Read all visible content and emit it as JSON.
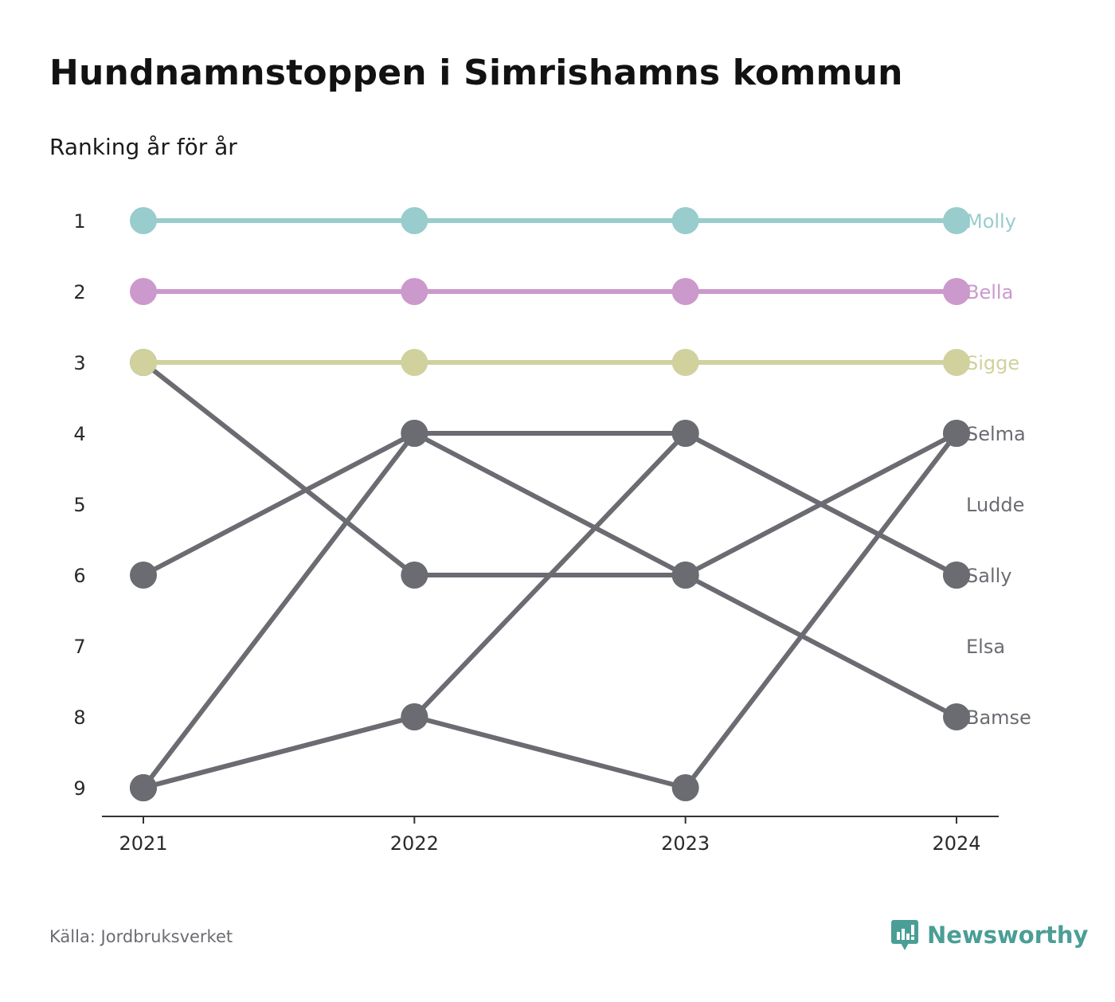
{
  "title": "Hundnamnstoppen i Simrishamns kommun",
  "subtitle": "Ranking år för år",
  "source": "Källa: Jordbruksverket",
  "brand": {
    "name": "Newsworthy",
    "icon": "newsworthy-logo-icon",
    "color": "#4a9e96"
  },
  "chart_data": {
    "type": "line",
    "title": "Hundnamnstoppen i Simrishamns kommun",
    "subtitle": "Ranking år för år",
    "x": [
      "2021",
      "2022",
      "2023",
      "2024"
    ],
    "y_ticks": [
      "1",
      "2",
      "3",
      "4",
      "5",
      "6",
      "7",
      "8",
      "9"
    ],
    "ylim": [
      1,
      9
    ],
    "y_inverted": true,
    "grid": false,
    "legend": "direct labels at right end",
    "series": [
      {
        "name": "Ludde",
        "values": [
          6,
          4,
          6,
          4
        ],
        "color": "#6b6b72"
      },
      {
        "name": "Elsa",
        "values": [
          9,
          4,
          4,
          6
        ],
        "color": "#6b6b72"
      },
      {
        "name": "Bamse",
        "values": [
          3,
          6,
          6,
          8
        ],
        "color": "#6b6b72"
      },
      {
        "name": "Sally",
        "values": [
          9,
          8,
          4,
          6
        ],
        "color": "#6b6b72"
      },
      {
        "name": "Selma",
        "values": [
          9,
          8,
          9,
          4
        ],
        "color": "#6b6b72"
      },
      {
        "name": "Sigge",
        "values": [
          3,
          3,
          3,
          3
        ],
        "color": "#d0d19d"
      },
      {
        "name": "Bella",
        "values": [
          2,
          2,
          2,
          2
        ],
        "color": "#cc99cc"
      },
      {
        "name": "Molly",
        "values": [
          1,
          1,
          1,
          1
        ],
        "color": "#99cccc"
      }
    ],
    "end_labels": [
      {
        "text": "Molly",
        "rank": 1,
        "color": "#99cccc"
      },
      {
        "text": "Bella",
        "rank": 2,
        "color": "#cc99cc"
      },
      {
        "text": "Sigge",
        "rank": 3,
        "color": "#d0d19d"
      },
      {
        "text": "Selma",
        "rank": 4,
        "color": "#6b6b72"
      },
      {
        "text": "Ludde",
        "rank": 5,
        "color": "#6b6b72"
      },
      {
        "text": "Sally",
        "rank": 6,
        "color": "#6b6b72"
      },
      {
        "text": "Elsa",
        "rank": 7,
        "color": "#6b6b72"
      },
      {
        "text": "Bamse",
        "rank": 8,
        "color": "#6b6b72"
      }
    ]
  }
}
